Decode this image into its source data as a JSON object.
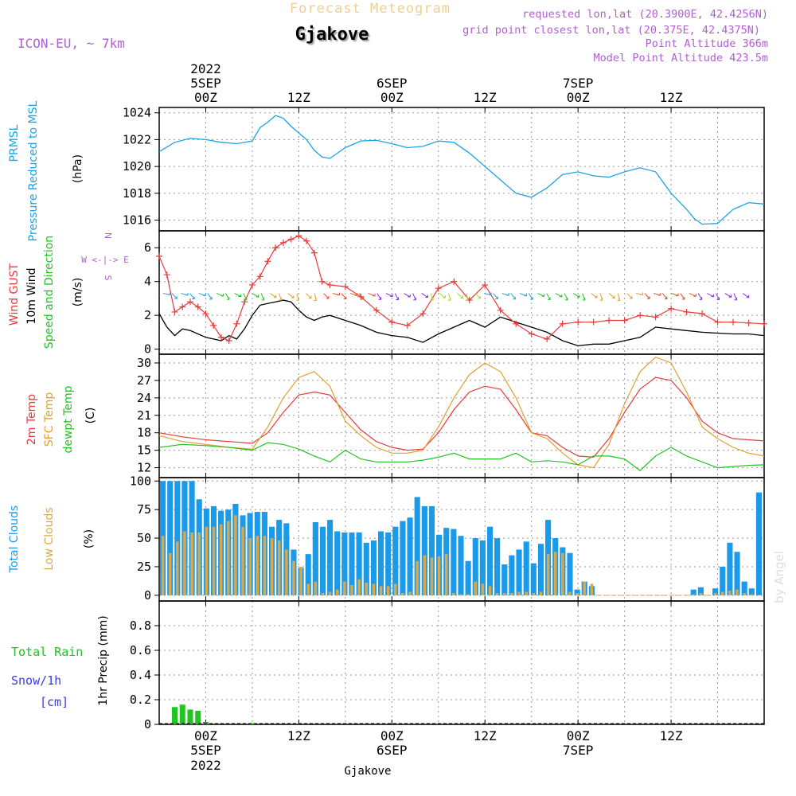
{
  "header": {
    "supertitle": "Forecast Meteogram",
    "location": "Gjakove",
    "model": "ICON-EU, ~ 7km",
    "requested": "requested lon,lat (20.3900E, 42.4256N)",
    "grid_point": "grid point closest lon,lat (20.375E, 42.4375N)",
    "point_altitude": "Point Altitude 366m",
    "model_altitude": "Model Point Altitude 423.5m",
    "footer_location": "Gjakove",
    "watermark": "by Angel"
  },
  "colors": {
    "prmsl": "#1aa3e8",
    "gust": "#e83a3a",
    "wind": "#000000",
    "t2m": "#e83a3a",
    "tsfc": "#e0a030",
    "dewpt": "#22c422",
    "total_clouds": "#1a9ae8",
    "low_clouds": "#d9a84a",
    "rain": "#22c422",
    "snow": "#3a3ae8",
    "model": "#b060d0",
    "compass": "#b060d0"
  },
  "chart_data": [
    {
      "type": "line",
      "panel": "pressure",
      "ylabel_lines": [
        "PRMSL",
        "Pressure Reduced to MSL"
      ],
      "unit": "(hPa)",
      "yticks": [
        1016,
        1018,
        1020,
        1022,
        1024
      ],
      "ylim": [
        1015.2,
        1024.4
      ],
      "x_hours": [
        -6,
        -4,
        -2,
        0,
        2,
        4,
        6,
        7,
        8,
        9,
        10,
        11,
        12,
        13,
        14,
        15,
        16,
        18,
        20,
        22,
        24,
        26,
        28,
        30,
        32,
        34,
        36,
        38,
        40,
        42,
        44,
        46,
        48,
        50,
        52,
        54,
        56,
        58,
        60,
        62,
        63,
        64,
        66,
        68,
        70,
        72
      ],
      "series": [
        {
          "name": "PRMSL",
          "values": [
            1021.1,
            1021.8,
            1022.1,
            1022.0,
            1021.8,
            1021.7,
            1021.9,
            1022.9,
            1023.3,
            1023.8,
            1023.6,
            1023.0,
            1022.5,
            1022.0,
            1021.2,
            1020.7,
            1020.6,
            1021.4,
            1021.9,
            1021.95,
            1021.7,
            1021.4,
            1021.5,
            1021.9,
            1021.8,
            1021.0,
            1020.0,
            1019.0,
            1018.0,
            1017.7,
            1018.4,
            1019.4,
            1019.6,
            1019.3,
            1019.2,
            1019.6,
            1019.9,
            1019.6,
            1018.0,
            1016.8,
            1016.1,
            1015.7,
            1015.75,
            1016.8,
            1017.3,
            1017.2
          ]
        }
      ]
    },
    {
      "type": "line",
      "panel": "wind",
      "ylabel_lines": [
        "Wind GUST",
        "10m Wind",
        "Speed and Direction"
      ],
      "unit": "(m/s)",
      "compass": [
        "N",
        "W <-|-> E",
        "S"
      ],
      "yticks": [
        0,
        2,
        4,
        6
      ],
      "ylim": [
        -0.3,
        7.0
      ],
      "x_hours": [
        -6,
        -5,
        -4,
        -3,
        -2,
        -1,
        0,
        1,
        2,
        3,
        4,
        5,
        6,
        7,
        8,
        9,
        10,
        11,
        12,
        13,
        14,
        15,
        16,
        18,
        20,
        22,
        24,
        26,
        28,
        30,
        32,
        34,
        36,
        38,
        40,
        42,
        44,
        46,
        48,
        50,
        52,
        54,
        56,
        58,
        60,
        62,
        64,
        66,
        68,
        70,
        72
      ],
      "series": [
        {
          "name": "Wind GUST",
          "values": [
            5.5,
            4.4,
            2.2,
            2.5,
            2.8,
            2.5,
            2.1,
            1.4,
            0.7,
            0.5,
            1.5,
            2.8,
            3.8,
            4.3,
            5.2,
            6.0,
            6.3,
            6.5,
            6.7,
            6.4,
            5.7,
            4.0,
            3.8,
            3.7,
            3.1,
            2.3,
            1.6,
            1.4,
            2.1,
            3.6,
            4.0,
            2.9,
            3.8,
            2.3,
            1.5,
            0.9,
            0.6,
            1.5,
            1.6,
            1.6,
            1.7,
            1.7,
            2.0,
            1.9,
            2.4,
            2.2,
            2.1,
            1.6,
            1.6,
            1.55,
            1.5
          ]
        },
        {
          "name": "10m Wind",
          "values": [
            2.1,
            1.3,
            0.8,
            1.2,
            1.1,
            0.9,
            0.7,
            0.6,
            0.5,
            0.8,
            0.6,
            1.2,
            2.0,
            2.6,
            2.7,
            2.8,
            2.9,
            2.8,
            2.3,
            1.9,
            1.7,
            1.9,
            2.0,
            1.7,
            1.4,
            1.0,
            0.8,
            0.7,
            0.4,
            0.9,
            1.3,
            1.7,
            1.3,
            1.9,
            1.6,
            1.3,
            1.0,
            0.5,
            0.2,
            0.3,
            0.3,
            0.5,
            0.7,
            1.3,
            1.2,
            1.1,
            1.0,
            0.95,
            0.9,
            0.9,
            0.8
          ]
        }
      ]
    },
    {
      "type": "line",
      "panel": "temperature",
      "ylabel_lines": [
        "2m Temp",
        "SFC Temp",
        "dewpt Temp"
      ],
      "unit": "(C)",
      "yticks": [
        12,
        15,
        18,
        21,
        24,
        27,
        30
      ],
      "ylim": [
        10.3,
        31.5
      ],
      "x_hours": [
        -6,
        -3,
        0,
        3,
        6,
        8,
        10,
        12,
        14,
        16,
        18,
        20,
        22,
        24,
        26,
        28,
        30,
        32,
        34,
        36,
        38,
        40,
        42,
        44,
        46,
        48,
        50,
        52,
        54,
        56,
        58,
        60,
        62,
        64,
        66,
        68,
        70,
        72
      ],
      "series": [
        {
          "name": "2m Temp",
          "values": [
            18,
            17.3,
            16.8,
            16.5,
            16.2,
            18,
            21.5,
            24.5,
            25,
            24.5,
            21.5,
            18.5,
            16.5,
            15.5,
            15,
            15.2,
            18,
            22,
            25,
            26,
            25.5,
            22,
            18,
            17.5,
            15.5,
            14,
            13.8,
            17,
            21.5,
            25.5,
            27.5,
            27,
            24,
            20,
            18,
            17,
            16.8,
            16.6
          ]
        },
        {
          "name": "SFC Temp",
          "values": [
            17.5,
            16.5,
            16,
            15.5,
            15.2,
            19,
            24,
            27.5,
            28.5,
            26,
            20,
            17.5,
            15.5,
            14.5,
            14.5,
            15,
            19,
            24,
            28,
            30,
            28.5,
            24,
            18,
            17,
            14.5,
            12.5,
            12,
            16,
            23,
            28.5,
            31,
            30,
            25,
            19,
            17,
            15.5,
            14.5,
            14
          ]
        },
        {
          "name": "dewpt Temp",
          "values": [
            15.5,
            16,
            15.8,
            15.5,
            15,
            16.3,
            16,
            15.2,
            14,
            13,
            15,
            13.5,
            13,
            13,
            13,
            13.3,
            13.8,
            14.5,
            13.5,
            13.5,
            13.5,
            14.5,
            13,
            13.2,
            13,
            12.5,
            14,
            14,
            13.5,
            11.5,
            14,
            15.5,
            14,
            13,
            12,
            12.2,
            12.4,
            12.5
          ]
        }
      ]
    },
    {
      "type": "bar",
      "panel": "clouds",
      "ylabel_lines": [
        "Total Clouds",
        "Low Clouds"
      ],
      "unit": "(%)",
      "yticks": [
        0,
        25,
        50,
        75,
        100
      ],
      "ylim": [
        -5,
        103
      ],
      "x_start_hour": -6,
      "series": [
        {
          "name": "Total Clouds",
          "values": [
            100,
            100,
            100,
            100,
            100,
            84,
            76,
            78,
            74,
            75,
            80,
            70,
            72,
            73,
            73,
            60,
            66,
            63,
            40,
            24,
            36,
            64,
            60,
            66,
            56,
            55,
            55,
            55,
            46,
            48,
            56,
            55,
            60,
            65,
            68,
            86,
            78,
            78,
            53,
            59,
            58,
            52,
            30,
            50,
            48,
            60,
            50,
            27,
            35,
            40,
            47,
            28,
            45,
            66,
            50,
            42,
            37,
            5,
            12,
            8,
            0,
            0,
            0,
            0,
            0,
            0,
            0,
            0,
            0,
            0,
            0,
            0,
            0,
            5,
            7,
            0,
            6,
            25,
            46,
            38,
            12,
            6,
            90
          ]
        },
        {
          "name": "Low Clouds",
          "values": [
            52,
            37,
            47,
            56,
            55,
            55,
            60,
            60,
            62,
            65,
            70,
            60,
            50,
            52,
            52,
            50,
            48,
            40,
            30,
            25,
            10,
            12,
            2,
            3,
            5,
            12,
            9,
            14,
            11,
            10,
            8,
            8,
            10,
            2,
            3,
            30,
            35,
            33,
            34,
            36,
            2,
            1,
            1,
            12,
            10,
            8,
            2,
            2,
            2,
            3,
            3,
            2,
            3,
            36,
            38,
            37,
            3,
            2,
            12,
            10,
            0,
            0,
            0,
            0,
            0,
            0,
            0,
            0,
            0,
            0,
            0,
            0,
            0,
            1,
            2,
            0,
            2,
            3,
            4,
            5,
            2,
            1,
            0
          ]
        }
      ]
    },
    {
      "type": "bar",
      "panel": "precipitation",
      "ylabel_lines": [
        "1hr Precip (mm)"
      ],
      "legend_left": [
        "Total  Rain",
        "Snow/1h",
        "[cm]"
      ],
      "yticks": [
        0,
        0.2,
        0.4,
        0.6,
        0.8
      ],
      "ylim": [
        0,
        1.0
      ],
      "x_start_hour": -4,
      "series": [
        {
          "name": "Total Rain",
          "values": [
            0.14,
            0.16,
            0.12,
            0.11,
            0.02,
            0,
            0,
            0,
            0,
            0,
            0.01
          ]
        }
      ]
    }
  ],
  "time_axis": {
    "ticks": [
      {
        "hour": 0,
        "label": "00Z"
      },
      {
        "hour": 12,
        "label": "12Z"
      },
      {
        "hour": 24,
        "label": "00Z"
      },
      {
        "hour": 36,
        "label": "12Z"
      },
      {
        "hour": 48,
        "label": "00Z"
      },
      {
        "hour": 60,
        "label": "12Z"
      }
    ],
    "dates": [
      {
        "hour": 0,
        "year": "2022",
        "day": "5SEP"
      },
      {
        "hour": 24,
        "day": "6SEP"
      },
      {
        "hour": 48,
        "day": "7SEP"
      }
    ]
  }
}
